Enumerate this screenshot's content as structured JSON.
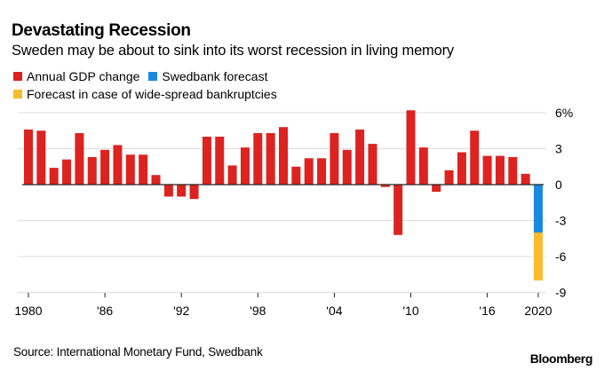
{
  "chart_data": {
    "type": "bar",
    "title": "Devastating Recession",
    "subtitle": "Sweden may be about to sink into its worst recession in living memory",
    "xlabel": "",
    "ylabel": "",
    "ylim": [
      -9,
      6
    ],
    "y_ticks": [
      6,
      3,
      0,
      -3,
      -6,
      -9
    ],
    "y_tick_labels": [
      "6%",
      "3",
      "0",
      "-3",
      "-6",
      "-9"
    ],
    "x_ticks": [
      1980,
      1986,
      1992,
      1998,
      2004,
      2010,
      2016,
      2020
    ],
    "x_tick_labels": [
      "1980",
      "'86",
      "'92",
      "'98",
      "'04",
      "'10",
      "'16",
      "2020"
    ],
    "grid": true,
    "legend_position": "top-left",
    "legend": [
      {
        "name": "Annual GDP change",
        "color": "#dc2320"
      },
      {
        "name": "Swedbank forecast",
        "color": "#1a8ae0"
      },
      {
        "name": "Forecast in case of wide-spread bankruptcies",
        "color": "#fbbb2e"
      }
    ],
    "categories": [
      1980,
      1981,
      1982,
      1983,
      1984,
      1985,
      1986,
      1987,
      1988,
      1989,
      1990,
      1991,
      1992,
      1993,
      1994,
      1995,
      1996,
      1997,
      1998,
      1999,
      2000,
      2001,
      2002,
      2003,
      2004,
      2005,
      2006,
      2007,
      2008,
      2009,
      2010,
      2011,
      2012,
      2013,
      2014,
      2015,
      2016,
      2017,
      2018,
      2019
    ],
    "series": [
      {
        "name": "Annual GDP change",
        "values": [
          4.6,
          4.5,
          1.4,
          2.1,
          4.3,
          2.3,
          2.9,
          3.3,
          2.5,
          2.5,
          0.8,
          -1.0,
          -1.0,
          -1.2,
          4.0,
          4.0,
          1.6,
          3.1,
          4.3,
          4.3,
          4.8,
          1.5,
          2.2,
          2.2,
          4.3,
          2.9,
          4.6,
          3.4,
          -0.2,
          -4.2,
          6.2,
          3.1,
          -0.6,
          1.2,
          2.7,
          4.5,
          2.4,
          2.4,
          2.3,
          0.9
        ]
      },
      {
        "name": "Swedbank forecast",
        "x": 2020,
        "value": -4.0
      },
      {
        "name": "Forecast in case of wide-spread bankruptcies",
        "x": 2020,
        "value": -8.0
      }
    ]
  },
  "footer": {
    "source": "Source: International Monetary Fund, Swedbank",
    "brand": "Bloomberg"
  }
}
